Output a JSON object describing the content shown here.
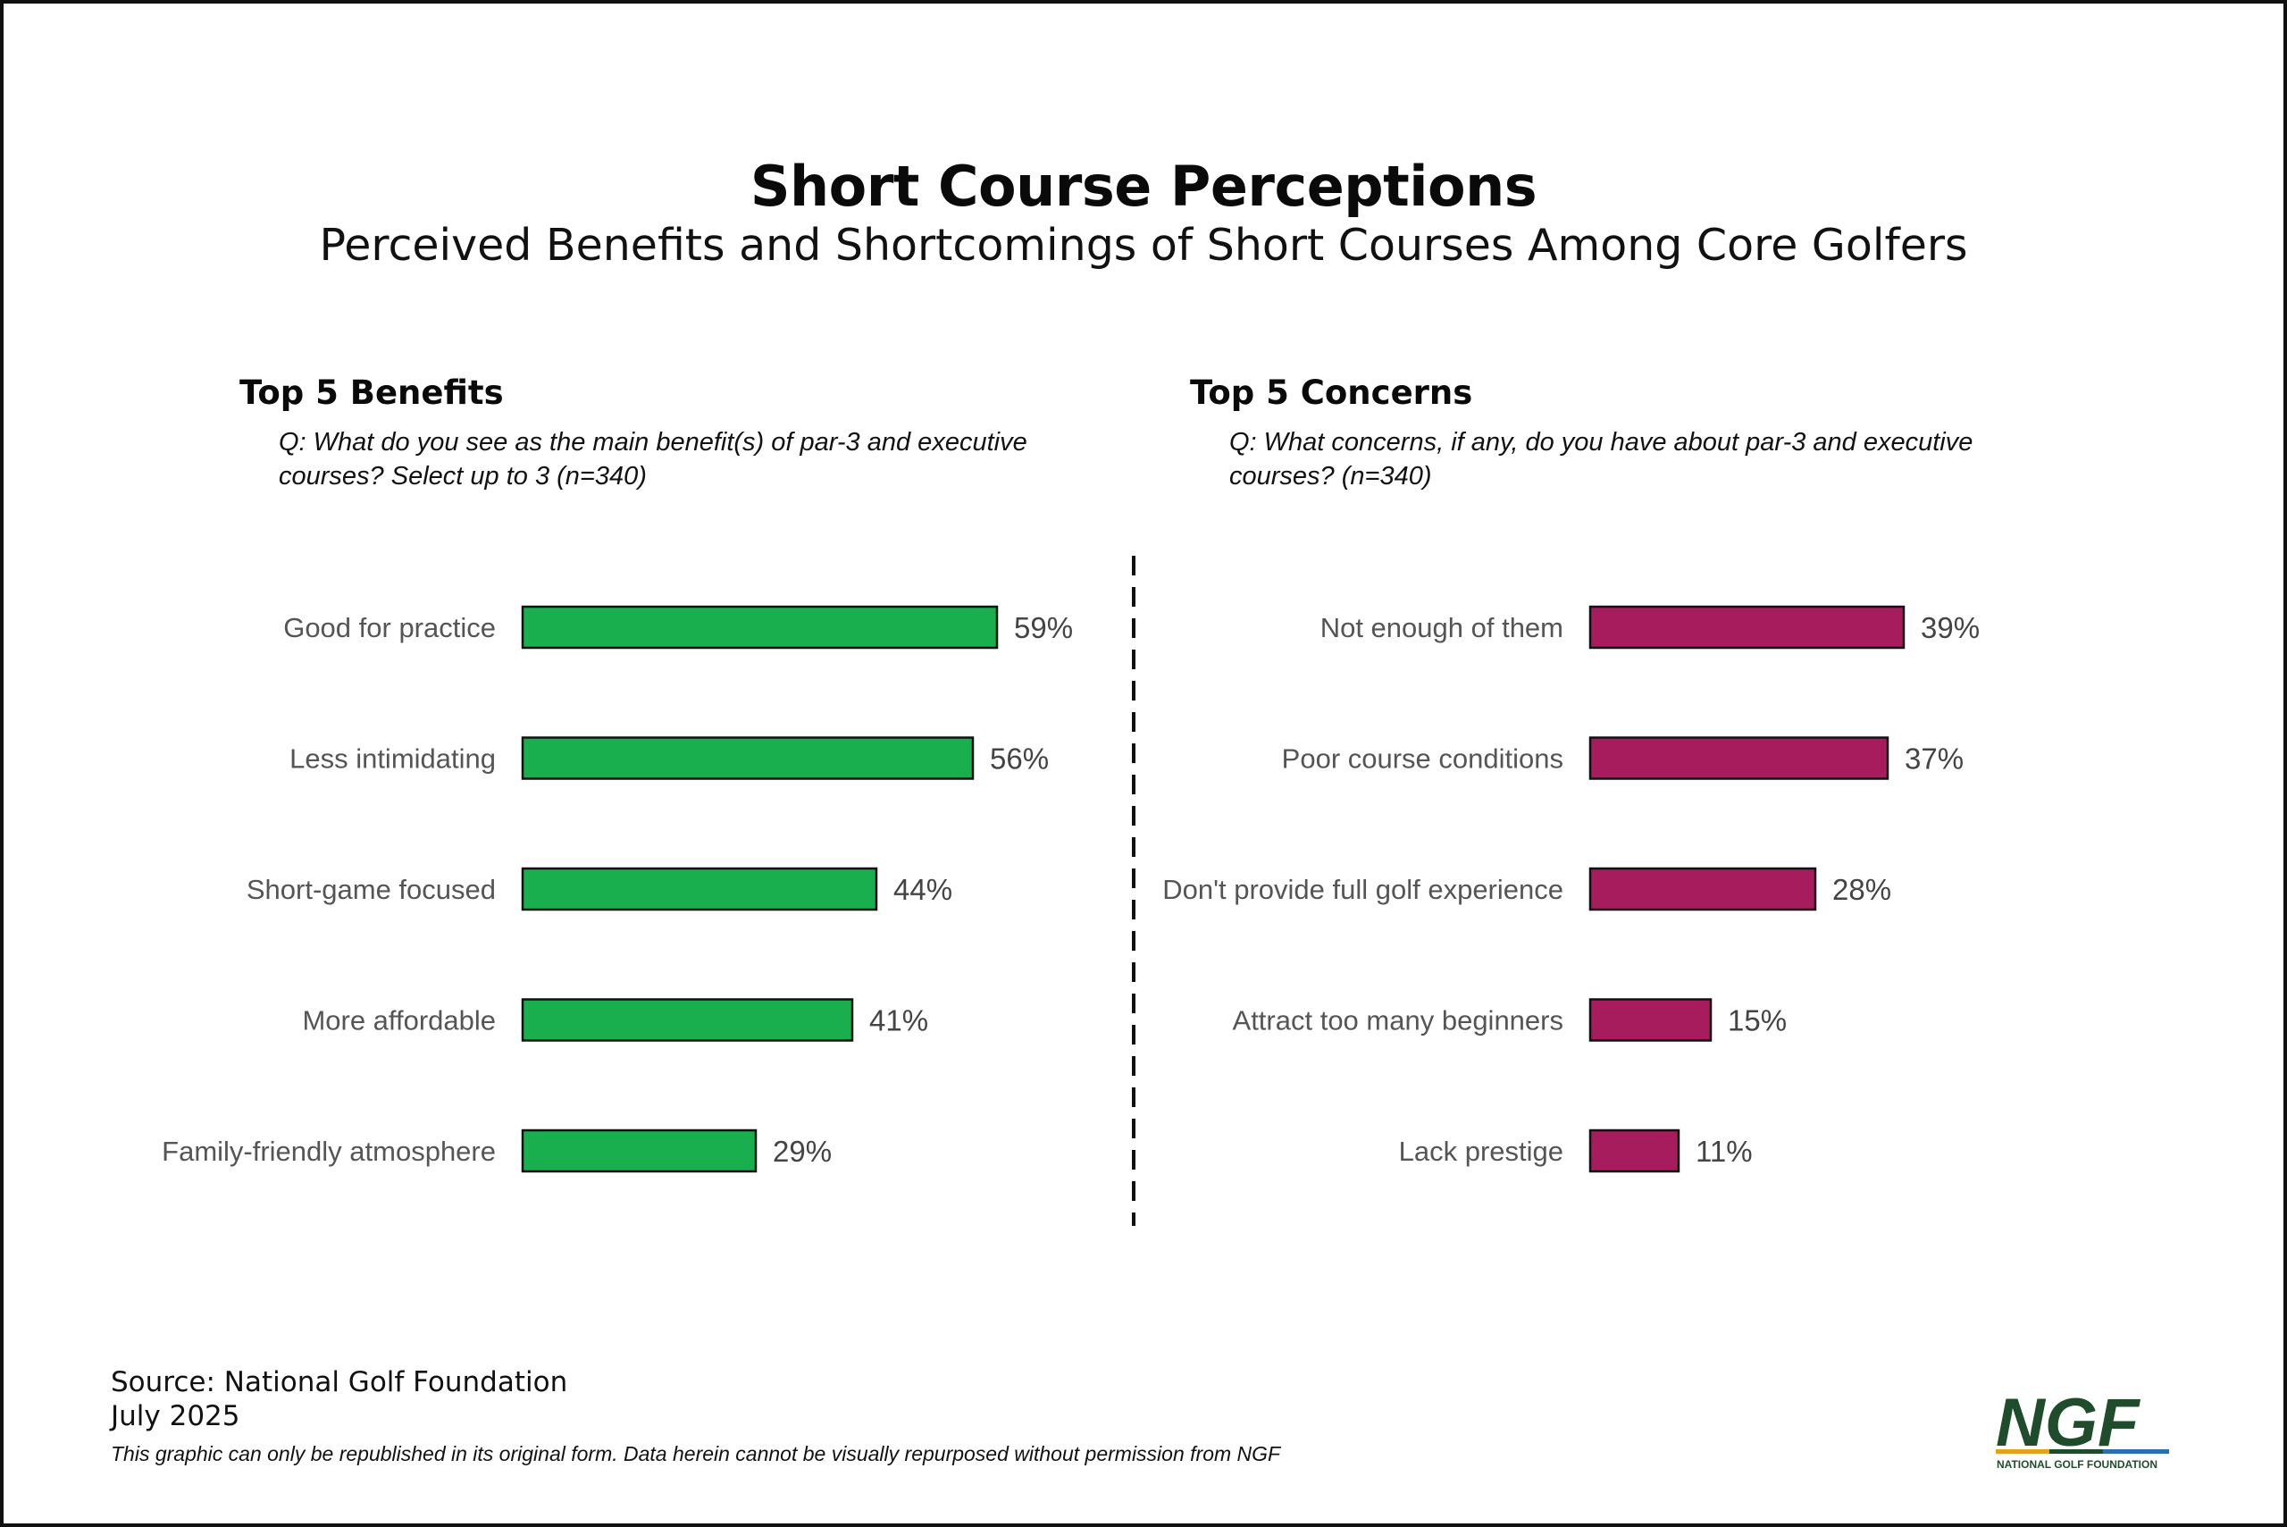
{
  "title": "Short Course Perceptions",
  "subtitle": "Perceived Benefits and Shortcomings of Short Courses Among Core Golfers",
  "colors": {
    "benefits": "#1aaf4e",
    "concerns": "#a61c5c",
    "logo_green": "#1f4d2c"
  },
  "footer": {
    "source": "Source: National Golf Foundation",
    "date": "July 2025",
    "disclaimer": "This graphic can only be republished in its original form. Data herein cannot be visually repurposed without permission from NGF"
  },
  "logo": {
    "mark": "NGF",
    "tagline": "NATIONAL GOLF FOUNDATION"
  },
  "chart_data": [
    {
      "type": "bar",
      "orientation": "horizontal",
      "title": "Top 5 Benefits",
      "subtitle": "Q: What do you see as the main benefit(s) of par-3 and executive courses? Select up to 3 (n=340)",
      "categories": [
        "Good for practice",
        "Less intimidating",
        "Short-game focused",
        "More affordable",
        "Family-friendly atmosphere"
      ],
      "values": [
        59,
        56,
        44,
        41,
        29
      ],
      "value_labels": [
        "59%",
        "56%",
        "44%",
        "41%",
        "29%"
      ],
      "unit": "%",
      "color": "#1aaf4e",
      "xlim": [
        0,
        100
      ],
      "grid": false
    },
    {
      "type": "bar",
      "orientation": "horizontal",
      "title": "Top 5 Concerns",
      "subtitle": "Q: What concerns, if any, do you have about par-3 and executive courses? (n=340)",
      "categories": [
        "Not enough of them",
        "Poor course conditions",
        "Don't provide full golf experience",
        "Attract too many beginners",
        "Lack prestige"
      ],
      "values": [
        39,
        37,
        28,
        15,
        11
      ],
      "value_labels": [
        "39%",
        "37%",
        "28%",
        "15%",
        "11%"
      ],
      "unit": "%",
      "color": "#a61c5c",
      "xlim": [
        0,
        100
      ],
      "grid": false
    }
  ]
}
